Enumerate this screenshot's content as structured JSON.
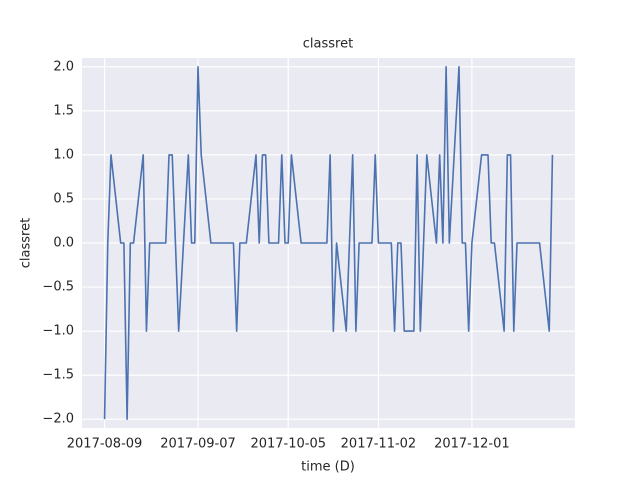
{
  "chart_data": {
    "type": "line",
    "title": "classret",
    "xlabel": "time (D)",
    "ylabel": "classret",
    "x": [
      "2017-08-09",
      "2017-08-10",
      "2017-08-11",
      "2017-08-14",
      "2017-08-15",
      "2017-08-16",
      "2017-08-17",
      "2017-08-18",
      "2017-08-21",
      "2017-08-22",
      "2017-08-23",
      "2017-08-24",
      "2017-08-25",
      "2017-08-28",
      "2017-08-29",
      "2017-08-30",
      "2017-08-31",
      "2017-09-01",
      "2017-09-04",
      "2017-09-05",
      "2017-09-06",
      "2017-09-07",
      "2017-09-08",
      "2017-09-11",
      "2017-09-12",
      "2017-09-13",
      "2017-09-14",
      "2017-09-15",
      "2017-09-18",
      "2017-09-19",
      "2017-09-20",
      "2017-09-21",
      "2017-09-22",
      "2017-09-25",
      "2017-09-26",
      "2017-09-27",
      "2017-09-28",
      "2017-09-29",
      "2017-10-02",
      "2017-10-03",
      "2017-10-04",
      "2017-10-05",
      "2017-10-06",
      "2017-10-09",
      "2017-10-10",
      "2017-10-11",
      "2017-10-12",
      "2017-10-13",
      "2017-10-16",
      "2017-10-17",
      "2017-10-18",
      "2017-10-19",
      "2017-10-20",
      "2017-10-23",
      "2017-10-24",
      "2017-10-25",
      "2017-10-26",
      "2017-10-27",
      "2017-10-30",
      "2017-10-31",
      "2017-11-01",
      "2017-11-02",
      "2017-11-03",
      "2017-11-06",
      "2017-11-07",
      "2017-11-08",
      "2017-11-09",
      "2017-11-10",
      "2017-11-13",
      "2017-11-14",
      "2017-11-15",
      "2017-11-16",
      "2017-11-17",
      "2017-11-20",
      "2017-11-21",
      "2017-11-22",
      "2017-11-23",
      "2017-11-24",
      "2017-11-27",
      "2017-11-28",
      "2017-11-29",
      "2017-11-30",
      "2017-12-01",
      "2017-12-04",
      "2017-12-05",
      "2017-12-06",
      "2017-12-07",
      "2017-12-08",
      "2017-12-11",
      "2017-12-12",
      "2017-12-13",
      "2017-12-14",
      "2017-12-15",
      "2017-12-18",
      "2017-12-19",
      "2017-12-20",
      "2017-12-21",
      "2017-12-22",
      "2017-12-25",
      "2017-12-26"
    ],
    "values": [
      -2,
      0,
      1,
      0,
      0,
      -2,
      0,
      0,
      1,
      -1,
      0,
      0,
      0,
      0,
      1,
      1,
      0,
      -1,
      1,
      0,
      0,
      2,
      1,
      0,
      0,
      0,
      0,
      0,
      0,
      -1,
      0,
      0,
      0,
      1,
      0,
      1,
      1,
      0,
      0,
      1,
      0,
      0,
      1,
      0,
      0,
      0,
      0,
      0,
      0,
      0,
      1,
      -1,
      0,
      -1,
      0,
      1,
      -1,
      0,
      0,
      0,
      1,
      0,
      0,
      0,
      -1,
      0,
      0,
      -1,
      -1,
      1,
      -1,
      0,
      1,
      0,
      1,
      0,
      2,
      0,
      2,
      0,
      0,
      -1,
      0,
      1,
      1,
      1,
      0,
      0,
      -1,
      1,
      1,
      -1,
      0,
      0,
      0,
      0,
      0,
      0,
      -1,
      1
    ],
    "color": "#4c72b0",
    "xlim": [
      "2017-08-02",
      "2018-01-02"
    ],
    "xticks": [
      "2017-08-09",
      "2017-09-07",
      "2017-10-05",
      "2017-11-02",
      "2017-12-01"
    ],
    "ylim": [
      -2.1,
      2.1
    ],
    "yticks": [
      {
        "value": -2,
        "label": "−2.0"
      },
      {
        "value": -1.5,
        "label": "−1.5"
      },
      {
        "value": -1,
        "label": "−1.0"
      },
      {
        "value": -0.5,
        "label": "−0.5"
      },
      {
        "value": 0,
        "label": "0.0"
      },
      {
        "value": 0.5,
        "label": "0.5"
      },
      {
        "value": 1,
        "label": "1.0"
      },
      {
        "value": 1.5,
        "label": "1.5"
      },
      {
        "value": 2,
        "label": "2.0"
      }
    ],
    "grid": true
  }
}
